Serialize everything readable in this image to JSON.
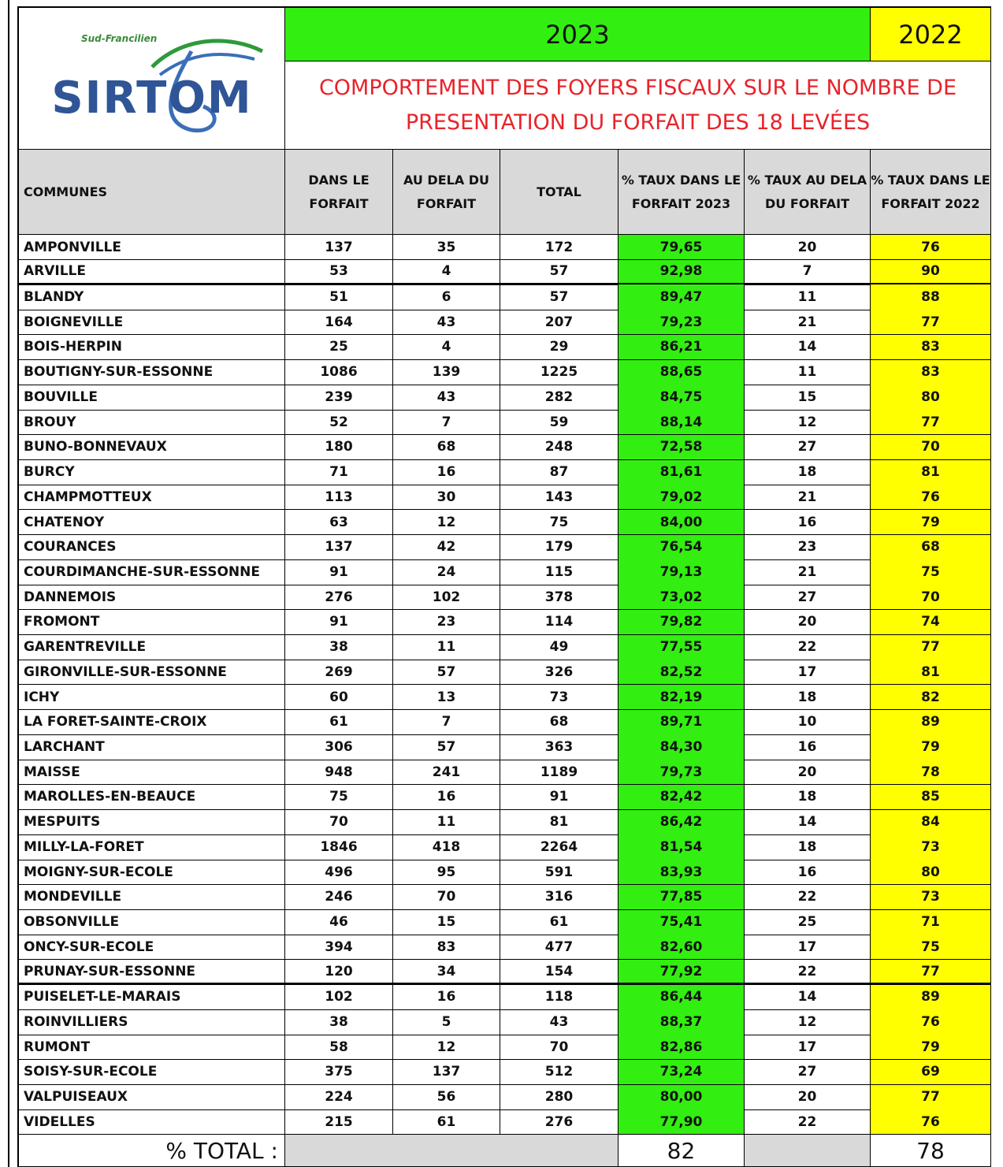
{
  "logo": {
    "tagline": "Sud-Francilien",
    "name": "SIRTOM"
  },
  "header": {
    "year_current": "2023",
    "year_previous": "2022",
    "title_lines": [
      "COMPORTEMENT DES FOYERS FISCAUX SUR LE NOMBRE DE",
      "PRESENTATION DU FORFAIT DES 18 LEVÉES"
    ]
  },
  "table": {
    "columns": [
      "COMMUNES",
      "DANS LE FORFAIT",
      "AU DELA  DU FORFAIT",
      "TOTAL",
      "% TAUX DANS LE FORFAIT 2023",
      "% TAUX AU DELA DU FORFAIT",
      "% TAUX DANS LE FORFAIT 2022"
    ],
    "rows": [
      [
        "AMPONVILLE",
        "137",
        "35",
        "172",
        "79,65",
        "20",
        "76"
      ],
      [
        "ARVILLE",
        "53",
        "4",
        "57",
        "92,98",
        "7",
        "90"
      ],
      [
        "BLANDY",
        "51",
        "6",
        "57",
        "89,47",
        "11",
        "88"
      ],
      [
        "BOIGNEVILLE",
        "164",
        "43",
        "207",
        "79,23",
        "21",
        "77"
      ],
      [
        "BOIS-HERPIN",
        "25",
        "4",
        "29",
        "86,21",
        "14",
        "83"
      ],
      [
        "BOUTIGNY-SUR-ESSONNE",
        "1086",
        "139",
        "1225",
        "88,65",
        "11",
        "83"
      ],
      [
        "BOUVILLE",
        "239",
        "43",
        "282",
        "84,75",
        "15",
        "80"
      ],
      [
        "BROUY",
        "52",
        "7",
        "59",
        "88,14",
        "12",
        "77"
      ],
      [
        "BUNO-BONNEVAUX",
        "180",
        "68",
        "248",
        "72,58",
        "27",
        "70"
      ],
      [
        "BURCY",
        "71",
        "16",
        "87",
        "81,61",
        "18",
        "81"
      ],
      [
        "CHAMPMOTTEUX",
        "113",
        "30",
        "143",
        "79,02",
        "21",
        "76"
      ],
      [
        "CHATENOY",
        "63",
        "12",
        "75",
        "84,00",
        "16",
        "79"
      ],
      [
        "COURANCES",
        "137",
        "42",
        "179",
        "76,54",
        "23",
        "68"
      ],
      [
        "COURDIMANCHE-SUR-ESSONNE",
        "91",
        "24",
        "115",
        "79,13",
        "21",
        "75"
      ],
      [
        "DANNEMOIS",
        "276",
        "102",
        "378",
        "73,02",
        "27",
        "70"
      ],
      [
        "FROMONT",
        "91",
        "23",
        "114",
        "79,82",
        "20",
        "74"
      ],
      [
        "GARENTREVILLE",
        "38",
        "11",
        "49",
        "77,55",
        "22",
        "77"
      ],
      [
        "GIRONVILLE-SUR-ESSONNE",
        "269",
        "57",
        "326",
        "82,52",
        "17",
        "81"
      ],
      [
        "ICHY",
        "60",
        "13",
        "73",
        "82,19",
        "18",
        "82"
      ],
      [
        "LA FORET-SAINTE-CROIX",
        "61",
        "7",
        "68",
        "89,71",
        "10",
        "89"
      ],
      [
        "LARCHANT",
        "306",
        "57",
        "363",
        "84,30",
        "16",
        "79"
      ],
      [
        "MAISSE",
        "948",
        "241",
        "1189",
        "79,73",
        "20",
        "78"
      ],
      [
        "MAROLLES-EN-BEAUCE",
        "75",
        "16",
        "91",
        "82,42",
        "18",
        "85"
      ],
      [
        "MESPUITS",
        "70",
        "11",
        "81",
        "86,42",
        "14",
        "84"
      ],
      [
        "MILLY-LA-FORET",
        "1846",
        "418",
        "2264",
        "81,54",
        "18",
        "73"
      ],
      [
        "MOIGNY-SUR-ECOLE",
        "496",
        "95",
        "591",
        "83,93",
        "16",
        "80"
      ],
      [
        "MONDEVILLE",
        "246",
        "70",
        "316",
        "77,85",
        "22",
        "73"
      ],
      [
        "OBSONVILLE",
        "46",
        "15",
        "61",
        "75,41",
        "25",
        "71"
      ],
      [
        "ONCY-SUR-ECOLE",
        "394",
        "83",
        "477",
        "82,60",
        "17",
        "75"
      ],
      [
        "PRUNAY-SUR-ESSONNE",
        "120",
        "34",
        "154",
        "77,92",
        "22",
        "77"
      ],
      [
        "PUISELET-LE-MARAIS",
        "102",
        "16",
        "118",
        "86,44",
        "14",
        "89"
      ],
      [
        "ROINVILLIERS",
        "38",
        "5",
        "43",
        "88,37",
        "12",
        "76"
      ],
      [
        "RUMONT",
        "58",
        "12",
        "70",
        "82,86",
        "17",
        "79"
      ],
      [
        "SOISY-SUR-ECOLE",
        "375",
        "137",
        "512",
        "73,24",
        "27",
        "69"
      ],
      [
        "VALPUISEAUX",
        "224",
        "56",
        "280",
        "80,00",
        "20",
        "77"
      ],
      [
        "VIDELLES",
        "215",
        "61",
        "276",
        "77,90",
        "22",
        "76"
      ]
    ],
    "total": {
      "label": "% TOTAL :",
      "current": "82",
      "previous": "78"
    }
  }
}
